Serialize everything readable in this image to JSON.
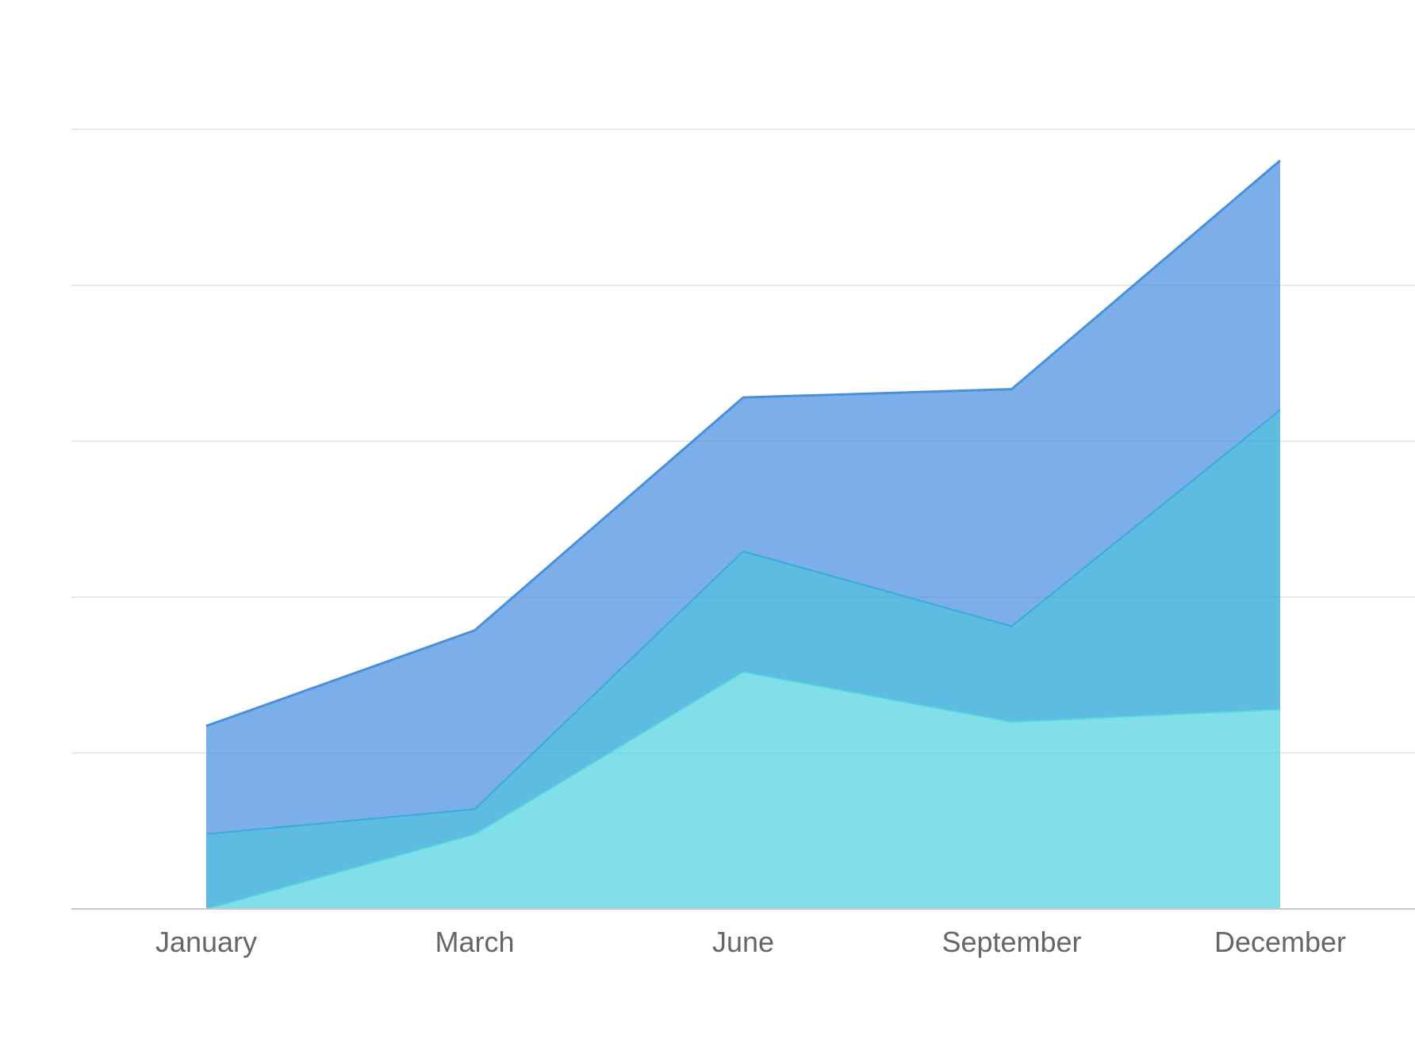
{
  "chart_data": {
    "type": "area",
    "stacked": true,
    "categories": [
      "January",
      "March",
      "June",
      "September",
      "December"
    ],
    "series": [
      {
        "values": [
          0,
          1.8,
          5.7,
          4.5,
          4.8
        ],
        "color": "#4fd2e0"
      },
      {
        "values": [
          1.8,
          0.6,
          2.9,
          2.3,
          7.2
        ],
        "color": "#2fa9d6"
      },
      {
        "values": [
          2.6,
          4.3,
          3.7,
          5.7,
          6.0
        ],
        "color": "#4a90e2"
      }
    ],
    "ylim": [
      0,
      18.75
    ],
    "grid": true,
    "title": "",
    "xlabel": "",
    "ylabel": "",
    "colors": {
      "grid": "#e3e3e3",
      "axis": "#c8c8c8",
      "tick_label": "#666666",
      "top_line": "#4a90d9"
    }
  }
}
